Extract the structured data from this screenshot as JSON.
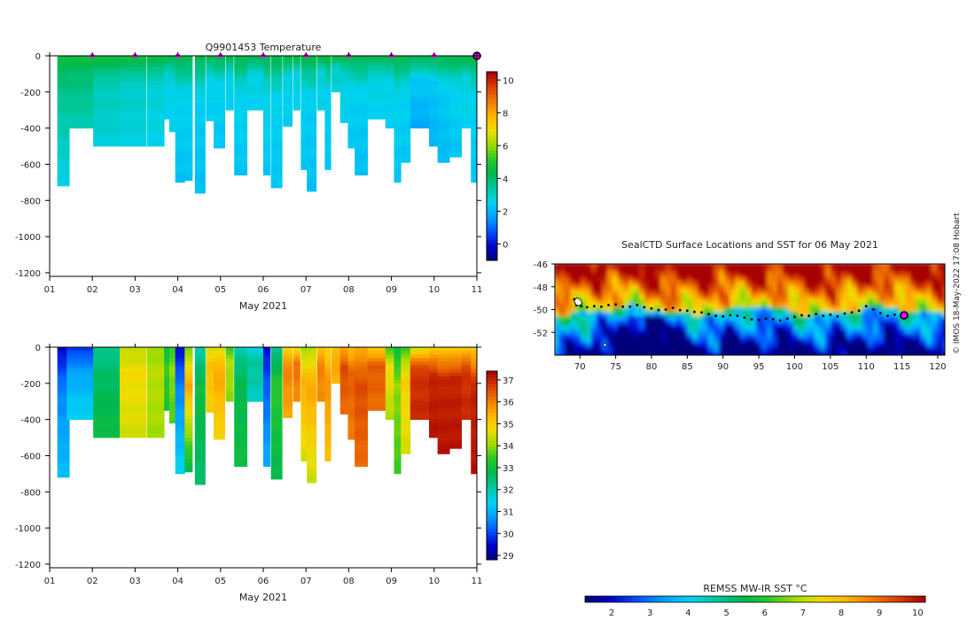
{
  "colors": {
    "temp_scale": [
      "#00007a",
      "#0000c8",
      "#0050ff",
      "#00a0ff",
      "#00d2f0",
      "#00c8a0",
      "#00b850",
      "#28c828",
      "#a0dc00",
      "#f0dc00",
      "#ffb400",
      "#f07800",
      "#d83c00",
      "#a80000"
    ],
    "sal_scale": [
      "#00007a",
      "#0000c8",
      "#0050ff",
      "#00a0ff",
      "#00d2f0",
      "#00c8a0",
      "#00b850",
      "#28c828",
      "#a0dc00",
      "#f0dc00",
      "#ffb400",
      "#f07800",
      "#d83c00",
      "#a80000"
    ],
    "sst_scale": [
      "#00007a",
      "#0000c8",
      "#0050ff",
      "#00a0ff",
      "#00d2f0",
      "#00c8a0",
      "#00b850",
      "#28c828",
      "#a0dc00",
      "#f0dc00",
      "#ffb400",
      "#f07800",
      "#d83c00",
      "#a80000"
    ],
    "marker": "#ff00ff",
    "track": "#000000"
  },
  "credit": "© IMOS 18-May-2022 17:08 Hobart",
  "chart_data": [
    {
      "id": "temperature",
      "type": "heatmap",
      "title": "Q9901453  Temperature",
      "xlabel": "May 2021",
      "ylabel": "",
      "xlim": [
        1,
        11
      ],
      "ylim": [
        -1220,
        0
      ],
      "xticks": [
        1,
        2,
        3,
        4,
        5,
        6,
        7,
        8,
        9,
        10,
        11
      ],
      "xtick_labels": [
        "01",
        "02",
        "03",
        "04",
        "05",
        "06",
        "07",
        "08",
        "09",
        "10",
        "11"
      ],
      "yticks": [
        0,
        -200,
        -400,
        -600,
        -800,
        -1000,
        -1200
      ],
      "ytick_labels": [
        "0",
        "-200",
        "-400",
        "-600",
        "-800",
        "-1000",
        "-1200"
      ],
      "clim": [
        -1,
        10.5
      ],
      "cbar_ticks": [
        0,
        2,
        4,
        6,
        8,
        10
      ],
      "cbar_labels": [
        "0",
        "2",
        "4",
        "6",
        "8",
        "10"
      ],
      "surface_marker_days": [
        2,
        3,
        4,
        5,
        6,
        7,
        8,
        9,
        10,
        11
      ],
      "profiles": [
        {
          "t": 1.18,
          "w": 0.28,
          "maxd": 720,
          "surf": 4.6,
          "mid": 3.6,
          "deep": 2.6
        },
        {
          "t": 1.4,
          "w": 0.62,
          "maxd": 400,
          "surf": 4.7,
          "mid": 3.9,
          "deep": 3.2
        },
        {
          "t": 2.02,
          "w": 0.62,
          "maxd": 500,
          "surf": 4.7,
          "mid": 3.2,
          "deep": 2.8
        },
        {
          "t": 2.64,
          "w": 0.62,
          "maxd": 500,
          "surf": 4.7,
          "mid": 3.0,
          "deep": 2.7
        },
        {
          "t": 3.28,
          "w": 0.4,
          "maxd": 500,
          "surf": 4.6,
          "mid": 2.9,
          "deep": 2.6
        },
        {
          "t": 3.68,
          "w": 0.12,
          "maxd": 350,
          "surf": 4.6,
          "mid": 2.8,
          "deep": 2.5
        },
        {
          "t": 3.8,
          "w": 0.14,
          "maxd": 420,
          "surf": 4.5,
          "mid": 2.7,
          "deep": 2.5
        },
        {
          "t": 3.94,
          "w": 0.22,
          "maxd": 700,
          "surf": 4.5,
          "mid": 2.6,
          "deep": 2.2
        },
        {
          "t": 4.16,
          "w": 0.18,
          "maxd": 690,
          "surf": 4.4,
          "mid": 2.6,
          "deep": 2.3
        },
        {
          "t": 4.4,
          "w": 0.24,
          "maxd": 760,
          "surf": 4.4,
          "mid": 2.5,
          "deep": 2.2
        },
        {
          "t": 4.66,
          "w": 0.18,
          "maxd": 360,
          "surf": 4.5,
          "mid": 2.7,
          "deep": 2.4
        },
        {
          "t": 4.84,
          "w": 0.26,
          "maxd": 510,
          "surf": 4.5,
          "mid": 2.6,
          "deep": 2.3
        },
        {
          "t": 5.12,
          "w": 0.18,
          "maxd": 300,
          "surf": 4.6,
          "mid": 2.8,
          "deep": 2.5
        },
        {
          "t": 5.32,
          "w": 0.3,
          "maxd": 660,
          "surf": 4.5,
          "mid": 2.6,
          "deep": 2.3
        },
        {
          "t": 5.62,
          "w": 0.38,
          "maxd": 300,
          "surf": 4.6,
          "mid": 2.8,
          "deep": 2.5
        },
        {
          "t": 6.0,
          "w": 0.16,
          "maxd": 660,
          "surf": 4.4,
          "mid": 2.7,
          "deep": 2.3
        },
        {
          "t": 6.18,
          "w": 0.26,
          "maxd": 730,
          "surf": 4.4,
          "mid": 2.6,
          "deep": 2.3
        },
        {
          "t": 6.46,
          "w": 0.22,
          "maxd": 390,
          "surf": 4.5,
          "mid": 2.7,
          "deep": 2.4
        },
        {
          "t": 6.7,
          "w": 0.16,
          "maxd": 300,
          "surf": 4.6,
          "mid": 2.8,
          "deep": 2.5
        },
        {
          "t": 6.88,
          "w": 0.14,
          "maxd": 630,
          "surf": 4.5,
          "mid": 2.6,
          "deep": 2.3
        },
        {
          "t": 7.02,
          "w": 0.22,
          "maxd": 750,
          "surf": 4.4,
          "mid": 2.5,
          "deep": 2.2
        },
        {
          "t": 7.26,
          "w": 0.18,
          "maxd": 300,
          "surf": 4.6,
          "mid": 2.8,
          "deep": 2.5
        },
        {
          "t": 7.44,
          "w": 0.14,
          "maxd": 630,
          "surf": 4.5,
          "mid": 2.6,
          "deep": 2.3
        },
        {
          "t": 7.6,
          "w": 0.2,
          "maxd": 200,
          "surf": 4.7,
          "mid": 3.0,
          "deep": 2.8
        },
        {
          "t": 7.8,
          "w": 0.18,
          "maxd": 370,
          "surf": 4.6,
          "mid": 2.8,
          "deep": 2.5
        },
        {
          "t": 7.98,
          "w": 0.16,
          "maxd": 510,
          "surf": 4.5,
          "mid": 2.6,
          "deep": 2.3
        },
        {
          "t": 8.14,
          "w": 0.3,
          "maxd": 660,
          "surf": 4.4,
          "mid": 2.5,
          "deep": 2.2
        },
        {
          "t": 8.44,
          "w": 0.42,
          "maxd": 350,
          "surf": 4.6,
          "mid": 2.8,
          "deep": 2.5
        },
        {
          "t": 8.86,
          "w": 0.2,
          "maxd": 400,
          "surf": 4.6,
          "mid": 2.7,
          "deep": 2.4
        },
        {
          "t": 9.06,
          "w": 0.16,
          "maxd": 700,
          "surf": 4.5,
          "mid": 2.6,
          "deep": 2.3
        },
        {
          "t": 9.22,
          "w": 0.22,
          "maxd": 590,
          "surf": 4.5,
          "mid": 2.6,
          "deep": 2.3
        },
        {
          "t": 9.44,
          "w": 0.44,
          "maxd": 400,
          "surf": 4.5,
          "mid": 2.4,
          "deep": 1.8
        },
        {
          "t": 9.88,
          "w": 0.2,
          "maxd": 500,
          "surf": 4.4,
          "mid": 2.3,
          "deep": 2.0
        },
        {
          "t": 10.08,
          "w": 0.28,
          "maxd": 590,
          "surf": 4.4,
          "mid": 2.4,
          "deep": 2.1
        },
        {
          "t": 10.36,
          "w": 0.28,
          "maxd": 560,
          "surf": 4.5,
          "mid": 2.6,
          "deep": 2.3
        },
        {
          "t": 10.64,
          "w": 0.22,
          "maxd": 400,
          "surf": 4.6,
          "mid": 2.8,
          "deep": 2.5
        },
        {
          "t": 10.86,
          "w": 0.14,
          "maxd": 700,
          "surf": 4.5,
          "mid": 2.6,
          "deep": 2.3
        }
      ]
    },
    {
      "id": "salinity",
      "type": "heatmap",
      "title": "",
      "xlabel": "May 2021",
      "ylabel": "",
      "xlim": [
        1,
        11
      ],
      "ylim": [
        -1220,
        0
      ],
      "xticks": [
        1,
        2,
        3,
        4,
        5,
        6,
        7,
        8,
        9,
        10,
        11
      ],
      "xtick_labels": [
        "01",
        "02",
        "03",
        "04",
        "05",
        "06",
        "07",
        "08",
        "09",
        "10",
        "11"
      ],
      "yticks": [
        0,
        -200,
        -400,
        -600,
        -800,
        -1000,
        -1200
      ],
      "ytick_labels": [
        "0",
        "-200",
        "-400",
        "-600",
        "-800",
        "-1000",
        "-1200"
      ],
      "clim": [
        28.8,
        37.4
      ],
      "cbar_ticks": [
        29,
        30,
        31,
        32,
        33,
        34,
        35,
        36,
        37
      ],
      "cbar_labels": [
        "29",
        "30",
        "31",
        "32",
        "33",
        "34",
        "35",
        "36",
        "37"
      ],
      "profiles": [
        {
          "t": 1.18,
          "w": 0.28,
          "maxd": 720,
          "surf": 29.4,
          "mid": 30.5,
          "deep": 31.2
        },
        {
          "t": 1.4,
          "w": 0.62,
          "maxd": 400,
          "surf": 29.8,
          "mid": 30.8,
          "deep": 31.5
        },
        {
          "t": 2.02,
          "w": 0.62,
          "maxd": 500,
          "surf": 32.2,
          "mid": 32.6,
          "deep": 33.0
        },
        {
          "t": 2.64,
          "w": 0.62,
          "maxd": 500,
          "surf": 34.3,
          "mid": 34.8,
          "deep": 34.5
        },
        {
          "t": 3.28,
          "w": 0.4,
          "maxd": 500,
          "surf": 34.0,
          "mid": 34.3,
          "deep": 34.1
        },
        {
          "t": 3.68,
          "w": 0.12,
          "maxd": 350,
          "surf": 32.8,
          "mid": 33.5,
          "deep": 33.2
        },
        {
          "t": 3.8,
          "w": 0.14,
          "maxd": 420,
          "surf": 33.4,
          "mid": 34.0,
          "deep": 33.6
        },
        {
          "t": 3.94,
          "w": 0.22,
          "maxd": 700,
          "surf": 29.5,
          "mid": 30.5,
          "deep": 31.5
        },
        {
          "t": 4.16,
          "w": 0.18,
          "maxd": 690,
          "surf": 33.8,
          "mid": 35.6,
          "deep": 32.8
        },
        {
          "t": 4.4,
          "w": 0.24,
          "maxd": 760,
          "surf": 32.0,
          "mid": 33.0,
          "deep": 32.5
        },
        {
          "t": 4.66,
          "w": 0.18,
          "maxd": 360,
          "surf": 34.5,
          "mid": 35.2,
          "deep": 35.0
        },
        {
          "t": 4.84,
          "w": 0.26,
          "maxd": 510,
          "surf": 34.6,
          "mid": 35.6,
          "deep": 34.8
        },
        {
          "t": 5.12,
          "w": 0.18,
          "maxd": 300,
          "surf": 33.5,
          "mid": 34.2,
          "deep": 34.0
        },
        {
          "t": 5.32,
          "w": 0.3,
          "maxd": 660,
          "surf": 32.0,
          "mid": 32.8,
          "deep": 33.0
        },
        {
          "t": 5.62,
          "w": 0.38,
          "maxd": 300,
          "surf": 31.5,
          "mid": 32.2,
          "deep": 31.8
        },
        {
          "t": 6.0,
          "w": 0.16,
          "maxd": 660,
          "surf": 29.5,
          "mid": 30.2,
          "deep": 31.0
        },
        {
          "t": 6.18,
          "w": 0.26,
          "maxd": 730,
          "surf": 32.2,
          "mid": 33.4,
          "deep": 32.8
        },
        {
          "t": 6.46,
          "w": 0.22,
          "maxd": 390,
          "surf": 34.8,
          "mid": 36.0,
          "deep": 35.5
        },
        {
          "t": 6.7,
          "w": 0.16,
          "maxd": 300,
          "surf": 34.5,
          "mid": 36.2,
          "deep": 35.8
        },
        {
          "t": 6.88,
          "w": 0.14,
          "maxd": 630,
          "surf": 34.0,
          "mid": 35.5,
          "deep": 34.5
        },
        {
          "t": 7.02,
          "w": 0.22,
          "maxd": 750,
          "surf": 34.2,
          "mid": 35.6,
          "deep": 34.4
        },
        {
          "t": 7.26,
          "w": 0.18,
          "maxd": 300,
          "surf": 35.0,
          "mid": 36.0,
          "deep": 35.8
        },
        {
          "t": 7.44,
          "w": 0.14,
          "maxd": 630,
          "surf": 34.8,
          "mid": 35.8,
          "deep": 35.2
        },
        {
          "t": 7.6,
          "w": 0.2,
          "maxd": 200,
          "surf": 35.0,
          "mid": 35.6,
          "deep": 35.4
        },
        {
          "t": 7.8,
          "w": 0.18,
          "maxd": 370,
          "surf": 35.5,
          "mid": 36.6,
          "deep": 36.2
        },
        {
          "t": 7.98,
          "w": 0.16,
          "maxd": 510,
          "surf": 35.2,
          "mid": 36.4,
          "deep": 36.0
        },
        {
          "t": 8.14,
          "w": 0.3,
          "maxd": 660,
          "surf": 35.5,
          "mid": 36.6,
          "deep": 36.2
        },
        {
          "t": 8.44,
          "w": 0.42,
          "maxd": 350,
          "surf": 35.0,
          "mid": 36.4,
          "deep": 36.2
        },
        {
          "t": 8.86,
          "w": 0.2,
          "maxd": 400,
          "surf": 33.5,
          "mid": 34.8,
          "deep": 34.2
        },
        {
          "t": 9.06,
          "w": 0.16,
          "maxd": 700,
          "surf": 33.0,
          "mid": 34.0,
          "deep": 33.5
        },
        {
          "t": 9.22,
          "w": 0.22,
          "maxd": 590,
          "surf": 33.5,
          "mid": 35.0,
          "deep": 34.5
        },
        {
          "t": 9.44,
          "w": 0.44,
          "maxd": 400,
          "surf": 34.5,
          "mid": 36.8,
          "deep": 37.0
        },
        {
          "t": 9.88,
          "w": 0.2,
          "maxd": 500,
          "surf": 35.0,
          "mid": 37.0,
          "deep": 37.2
        },
        {
          "t": 10.08,
          "w": 0.28,
          "maxd": 590,
          "surf": 35.0,
          "mid": 37.0,
          "deep": 37.2
        },
        {
          "t": 10.36,
          "w": 0.28,
          "maxd": 560,
          "surf": 35.0,
          "mid": 37.0,
          "deep": 37.2
        },
        {
          "t": 10.64,
          "w": 0.22,
          "maxd": 400,
          "surf": 35.0,
          "mid": 36.8,
          "deep": 37.0
        },
        {
          "t": 10.86,
          "w": 0.14,
          "maxd": 700,
          "surf": 35.0,
          "mid": 37.0,
          "deep": 37.2
        }
      ]
    },
    {
      "id": "sst_map",
      "type": "heatmap",
      "title": "SealCTD Surface Locations and SST for 06 May 2021",
      "xlabel": "",
      "ylabel": "",
      "xlim": [
        66.5,
        121
      ],
      "ylim": [
        -54,
        -46
      ],
      "xticks": [
        70,
        75,
        80,
        85,
        90,
        95,
        100,
        105,
        110,
        115,
        120
      ],
      "xtick_labels": [
        "70",
        "75",
        "80",
        "85",
        "90",
        "95",
        "100",
        "105",
        "110",
        "115",
        "120"
      ],
      "yticks": [
        -46,
        -48,
        -50,
        -52
      ],
      "ytick_labels": [
        "-46",
        "-48",
        "-50",
        "-52"
      ],
      "clim": [
        1.3,
        10.2
      ],
      "colorbar_label": "REMSS MW-IR SST °C",
      "cbar_ticks": [
        2,
        3,
        4,
        5,
        6,
        7,
        8,
        9,
        10
      ],
      "cbar_labels": [
        "2",
        "3",
        "4",
        "5",
        "6",
        "7",
        "8",
        "9",
        "10"
      ],
      "track": [
        [
          69.2,
          -49.1
        ],
        [
          69.5,
          -49.6
        ],
        [
          69.9,
          -49.2
        ],
        [
          70.2,
          -49.7
        ],
        [
          71,
          -49.8
        ],
        [
          72,
          -49.7
        ],
        [
          73,
          -49.75
        ],
        [
          74,
          -49.6
        ],
        [
          75,
          -49.55
        ],
        [
          76,
          -49.75
        ],
        [
          77,
          -49.75
        ],
        [
          78,
          -49.6
        ],
        [
          79,
          -49.8
        ],
        [
          80,
          -49.9
        ],
        [
          81,
          -50.05
        ],
        [
          82,
          -50.0
        ],
        [
          83,
          -49.85
        ],
        [
          84,
          -50.05
        ],
        [
          85,
          -50.1
        ],
        [
          86,
          -50.2
        ],
        [
          87,
          -50.25
        ],
        [
          88,
          -50.4
        ],
        [
          89,
          -50.55
        ],
        [
          90,
          -50.6
        ],
        [
          91,
          -50.5
        ],
        [
          92,
          -50.55
        ],
        [
          93,
          -50.7
        ],
        [
          94,
          -50.85
        ],
        [
          95,
          -50.9
        ],
        [
          96,
          -50.8
        ],
        [
          97,
          -50.85
        ],
        [
          98,
          -50.95
        ],
        [
          99,
          -50.8
        ],
        [
          100,
          -50.65
        ],
        [
          101,
          -50.5
        ],
        [
          102,
          -50.55
        ],
        [
          103,
          -50.4
        ],
        [
          104,
          -50.55
        ],
        [
          105,
          -50.45
        ],
        [
          106,
          -50.6
        ],
        [
          107,
          -50.35
        ],
        [
          108,
          -50.25
        ],
        [
          109,
          -50.1
        ],
        [
          110,
          -49.7
        ],
        [
          111,
          -50.0
        ],
        [
          112,
          -50.3
        ],
        [
          113,
          -50.55
        ],
        [
          114,
          -50.45
        ],
        [
          115,
          -50.5
        ]
      ],
      "current_position": [
        115.3,
        -50.5
      ]
    }
  ]
}
